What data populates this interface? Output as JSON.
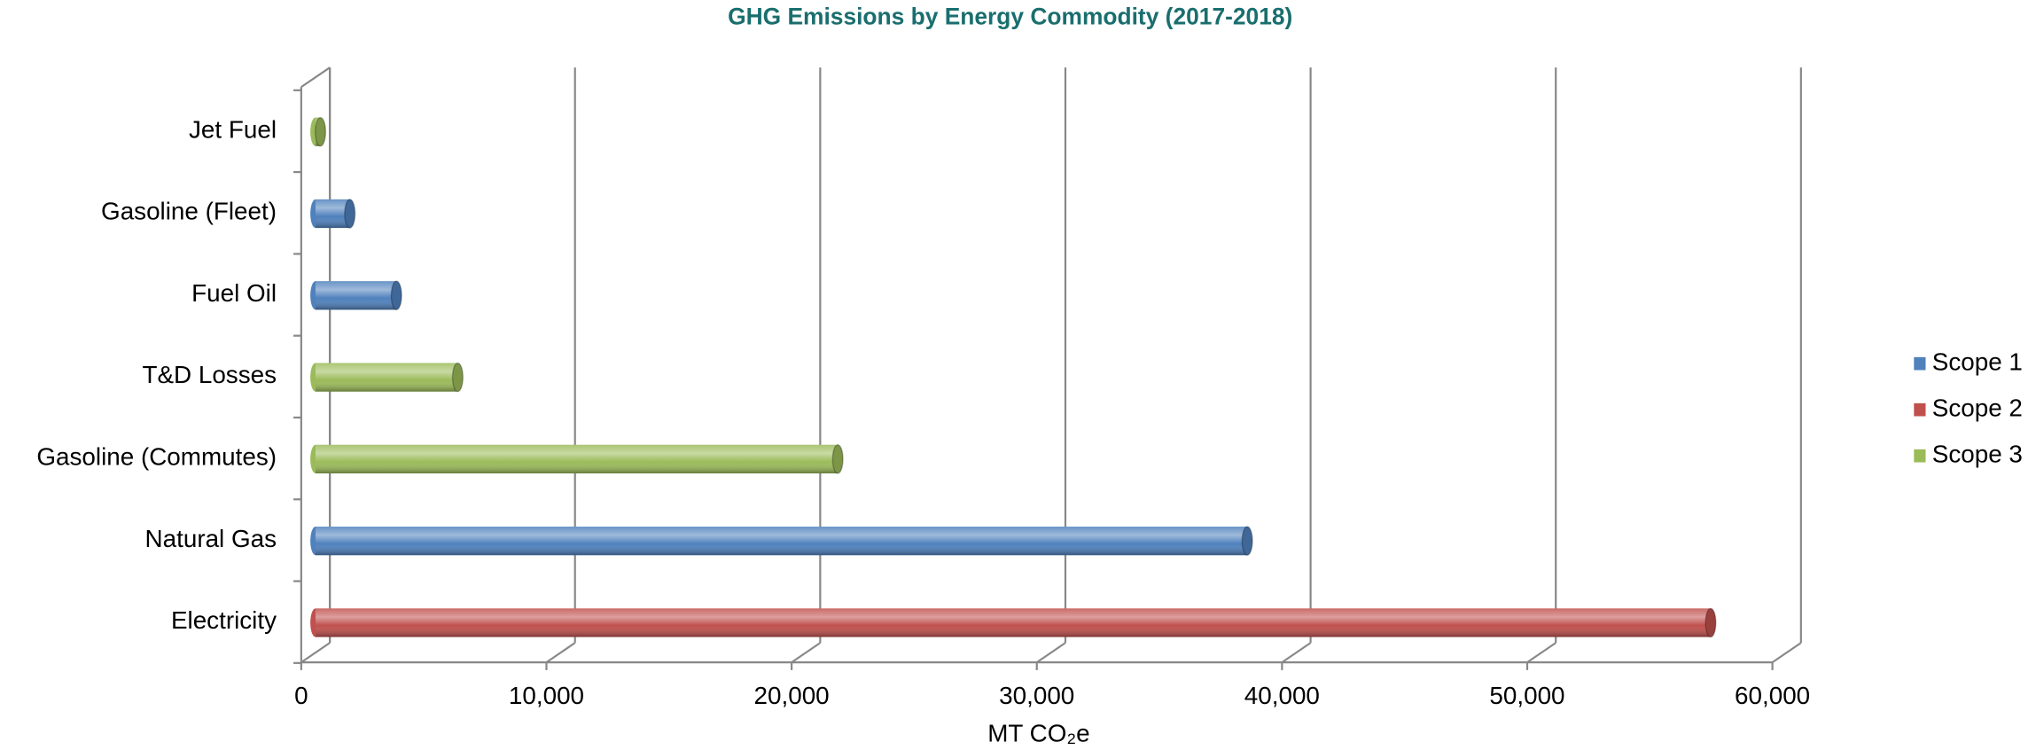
{
  "chart_data": {
    "type": "bar3d_horizontal",
    "title": "GHG Emissions by Energy Commodity (2017-2018)",
    "x_label": "MT CO₂e",
    "categories": [
      "Electricity",
      "Natural Gas",
      "Gasoline (Commutes)",
      "T&D Losses",
      "Fuel Oil",
      "Gasoline (Fleet)",
      "Jet Fuel"
    ],
    "series": [
      {
        "name": "Scope 1",
        "color": "#4f81bd",
        "values": [
          null,
          38000,
          null,
          null,
          3300,
          1400,
          null
        ]
      },
      {
        "name": "Scope 2",
        "color": "#c0504d",
        "values": [
          56900,
          null,
          null,
          null,
          null,
          null,
          null
        ]
      },
      {
        "name": "Scope 3",
        "color": "#9bbb59",
        "values": [
          null,
          null,
          21300,
          5800,
          null,
          null,
          200
        ]
      }
    ],
    "xlim": [
      0,
      60000
    ],
    "xticks": [
      0,
      {
        "value": 10000,
        "label": "10,000"
      },
      {
        "value": 20000,
        "label": "20,000"
      },
      {
        "value": 30000,
        "label": "30,000"
      },
      {
        "value": 40000,
        "label": "40,000"
      },
      {
        "value": 50000,
        "label": "50,000"
      },
      {
        "value": 60000,
        "label": "60,000"
      }
    ],
    "grid": true,
    "legend": "right"
  }
}
